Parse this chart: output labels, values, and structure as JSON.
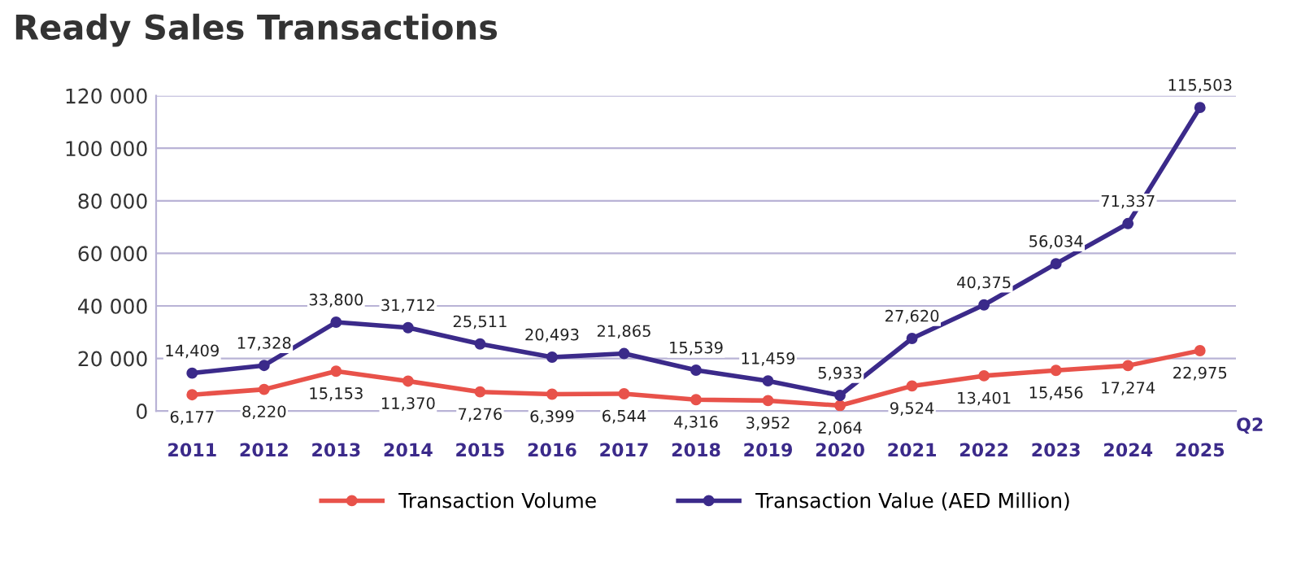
{
  "chart_data": {
    "type": "line",
    "title": "Ready Sales Transactions",
    "categories": [
      "2011",
      "2012",
      "2013",
      "2014",
      "2015",
      "2016",
      "2017",
      "2018",
      "2019",
      "2020",
      "2021",
      "2022",
      "2023",
      "2024",
      "2025"
    ],
    "series": [
      {
        "name": "Transaction Volume",
        "color": "#e8524a",
        "values": [
          6177,
          8220,
          15153,
          11370,
          7276,
          6399,
          6544,
          4316,
          3952,
          2064,
          9524,
          13401,
          15456,
          17274,
          22975
        ],
        "value_labels": [
          "6,177",
          "8,220",
          "15,153",
          "11,370",
          "7,276",
          "6,399",
          "6,544",
          "4,316",
          "3,952",
          "2,064",
          "9,524",
          "13,401",
          "15,456",
          "17,274",
          "22,975"
        ]
      },
      {
        "name": "Transaction Value (AED Million)",
        "color": "#3b2a8a",
        "values": [
          14409,
          17328,
          33800,
          31712,
          25511,
          20493,
          21865,
          15539,
          11459,
          5933,
          27620,
          40375,
          56034,
          71337,
          115503
        ],
        "value_labels": [
          "14,409",
          "17,328",
          "33,800",
          "31,712",
          "25,511",
          "20,493",
          "21,865",
          "15,539",
          "11,459",
          "5,933",
          "27,620",
          "40,375",
          "56,034",
          "71,337",
          "115,503"
        ]
      }
    ],
    "ylim": [
      0,
      120000
    ],
    "yticks": [
      0,
      {
        "value": 20000,
        "label": "20 000"
      },
      {
        "value": 40000,
        "label": "40 000"
      },
      {
        "value": 60000,
        "label": "60 000"
      },
      {
        "value": 80000,
        "label": "80 000"
      },
      {
        "value": 100000,
        "label": "100 000"
      },
      {
        "value": 120000,
        "label": "120 000"
      }
    ],
    "grid": "y",
    "legend": "bottom",
    "marker": "circle",
    "line_style": "solid",
    "annotations": [
      "Q2"
    ]
  }
}
